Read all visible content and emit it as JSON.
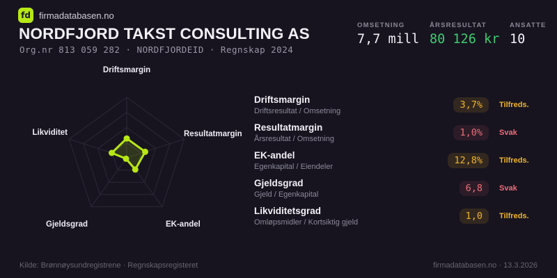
{
  "colors": {
    "bg": "#171420",
    "text": "#f2f1f5",
    "lime": "#b7e814",
    "green": "#3fcd6f",
    "amber": "#f0b429",
    "red": "#ef6e79",
    "grid": "#2c2937"
  },
  "brand": {
    "logo": "fd",
    "site": "firmadatabasen.no"
  },
  "header": {
    "title": "NORDFJORD TAKST CONSULTING AS",
    "subtitle": "Org.nr 813 059 282  ·  NORDFJORDEID  ·  Regnskap 2024"
  },
  "stats": [
    {
      "label": "OMSETNING",
      "value": "7,7 mill",
      "color": "#f2f1f5"
    },
    {
      "label": "ÅRSRESULTAT",
      "value": "80 126 kr",
      "color": "#3fcd6f"
    },
    {
      "label": "ANSATTE",
      "value": "10",
      "color": "#f2f1f5"
    }
  ],
  "chart_data": {
    "type": "radar",
    "axes": [
      "Driftsmargin",
      "Resultatmargin",
      "EK-andel",
      "Gjeldsgrad",
      "Likviditet"
    ],
    "values": [
      0.32,
      0.32,
      0.24,
      0.02,
      0.26
    ],
    "max": 1,
    "rings": 4,
    "legend": "none",
    "stroke": "#b7e814",
    "fill": "rgba(183,232,20,0.16)",
    "grid": "#2c2937"
  },
  "metrics": {
    "rows": [
      {
        "name": "Driftsmargin",
        "formula": "Driftsresultat / Omsetning",
        "value": "3,7%",
        "status": "Tilfreds.",
        "level": "ok"
      },
      {
        "name": "Resultatmargin",
        "formula": "Årsresultat / Omsetning",
        "value": "1,0%",
        "status": "Svak",
        "level": "bad"
      },
      {
        "name": "EK-andel",
        "formula": "Egenkapital / Eiendeler",
        "value": "12,8%",
        "status": "Tilfreds.",
        "level": "ok"
      },
      {
        "name": "Gjeldsgrad",
        "formula": "Gjeld / Egenkapital",
        "value": "6,8",
        "status": "Svak",
        "level": "bad"
      },
      {
        "name": "Likviditetsgrad",
        "formula": "Omløpsmidler / Kortsiktig gjeld",
        "value": "1,0",
        "status": "Tilfreds.",
        "level": "ok"
      }
    ]
  },
  "footer": {
    "source": "Kilde: Brønnøysundregistrene · Regnskapsregisteret",
    "site": "firmadatabasen.no · 13.3.2026"
  }
}
